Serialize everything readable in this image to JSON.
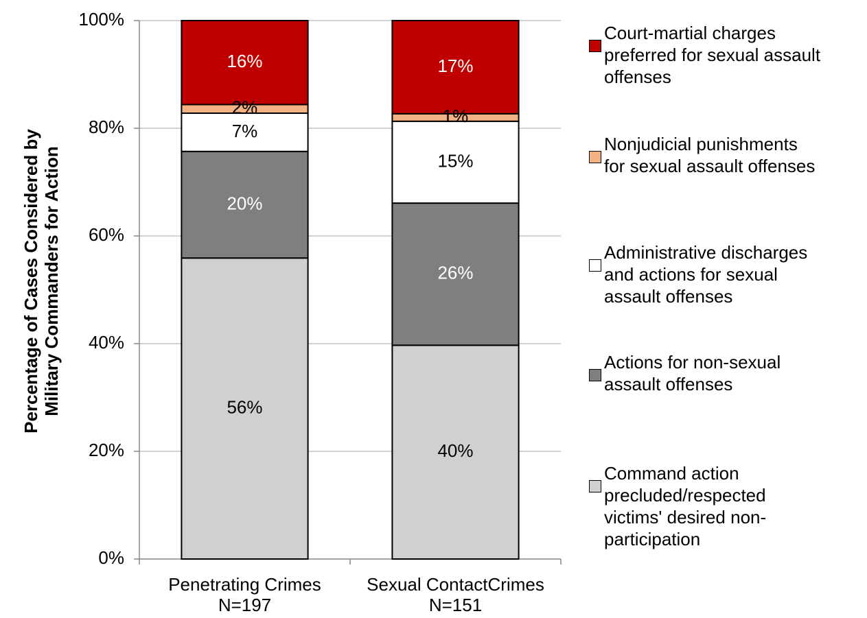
{
  "chart_data": {
    "type": "stacked_bar",
    "y_label": "Percentage of Cases Considered by\nMilitary Commanders for Action",
    "categories": [
      "Penetrating Crimes\nN=197",
      "Sexual ContactCrimes\nN=151"
    ],
    "series": [
      {
        "name": "Command action\nprecluded/respected\nvictims' desired non-\nparticipation",
        "color": "#d0cfd1",
        "label_color": "#000000",
        "values": [
          55.9,
          39.7
        ],
        "value_labels": [
          "56%",
          "40%"
        ]
      },
      {
        "name": "Actions for non-sexual\nassault offenses",
        "color": "#7f7f7f",
        "label_color": "#ffffff",
        "values": [
          19.8,
          26.4
        ],
        "value_labels": [
          "20%",
          "26%"
        ]
      },
      {
        "name": "Administrative discharges\nand actions for sexual\nassault offenses",
        "color": "#ffffff",
        "label_color": "#000000",
        "values": [
          7.1,
          15.2
        ],
        "value_labels": [
          "7%",
          "15%"
        ]
      },
      {
        "name": "Nonjudicial punishments\nfor sexual assault offenses",
        "color": "#f4b183",
        "label_color": "#000000",
        "values": [
          1.6,
          1.4
        ],
        "value_labels": [
          "2%",
          "1%"
        ]
      },
      {
        "name": "Court-martial charges\npreferred for sexual assault\noffenses",
        "color": "#c00000",
        "label_color": "#ffffff",
        "values": [
          15.6,
          17.3
        ],
        "value_labels": [
          "16%",
          "17%"
        ]
      }
    ],
    "ylim": [
      0,
      100
    ],
    "yticks": [
      {
        "value": 0,
        "label": "0%"
      },
      {
        "value": 20,
        "label": "20%"
      },
      {
        "value": 40,
        "label": "40%"
      },
      {
        "value": 60,
        "label": "60%"
      },
      {
        "value": 80,
        "label": "80%"
      },
      {
        "value": 100,
        "label": "100%"
      }
    ],
    "grid": true,
    "legend": "right"
  }
}
